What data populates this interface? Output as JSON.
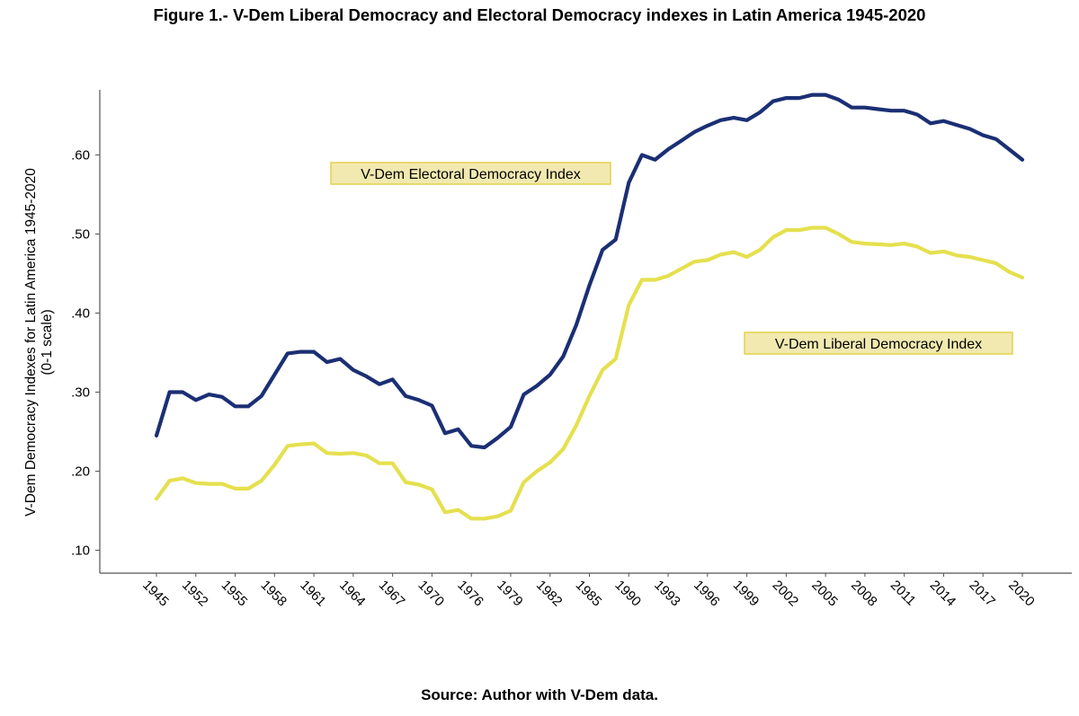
{
  "figure": {
    "title": "Figure 1.- V-Dem Liberal Democracy and Electoral Democracy indexes in Latin America 1945-2020",
    "source": "Source: Author with V-Dem data."
  },
  "chart_data": {
    "type": "line",
    "title": "Figure 1.- V-Dem Liberal Democracy and Electoral Democracy indexes in Latin America 1945-2020",
    "xlabel": "",
    "ylabel_lines": [
      "V-Dem Democracy Indexes for Latin America 1945-2020",
      "(0-1 scale)"
    ],
    "ylim": [
      0.09,
      0.7
    ],
    "y_ticks": [
      0.1,
      0.2,
      0.3,
      0.4,
      0.5,
      0.6
    ],
    "y_tick_labels": [
      ".10",
      ".20",
      ".30",
      ".40",
      ".50",
      ".60"
    ],
    "x_tick_labels": [
      "1945",
      "1952",
      "1955",
      "1958",
      "1961",
      "1964",
      "1967",
      "1970",
      "1976",
      "1979",
      "1982",
      "1985",
      "1990",
      "1993",
      "1996",
      "1999",
      "2002",
      "2005",
      "2008",
      "2011",
      "2014",
      "2017",
      "2020"
    ],
    "x_tick_positions": [
      0,
      3,
      6,
      9,
      12,
      15,
      18,
      21,
      24,
      27,
      30,
      33,
      36,
      39,
      42,
      45,
      48,
      51,
      54,
      57,
      60,
      63,
      66
    ],
    "grid": false,
    "legend": "inline labels",
    "series": [
      {
        "name": "V-Dem Electoral Democracy Index",
        "color": "#1b2f74",
        "label_color": "#f2e9b0",
        "label_border": "#e3d24a",
        "values": [
          0.245,
          0.3,
          0.3,
          0.29,
          0.297,
          0.294,
          0.282,
          0.282,
          0.295,
          0.322,
          0.349,
          0.351,
          0.351,
          0.338,
          0.342,
          0.328,
          0.32,
          0.31,
          0.316,
          0.295,
          0.29,
          0.283,
          0.248,
          0.253,
          0.232,
          0.23,
          0.242,
          0.256,
          0.297,
          0.308,
          0.322,
          0.345,
          0.385,
          0.435,
          0.48,
          0.493,
          0.565,
          0.6,
          0.594,
          0.607,
          0.618,
          0.629,
          0.637,
          0.644,
          0.647,
          0.644,
          0.654,
          0.668,
          0.672,
          0.672,
          0.676,
          0.676,
          0.67,
          0.66,
          0.66,
          0.658,
          0.656,
          0.656,
          0.651,
          0.64,
          0.643,
          0.638,
          0.633,
          0.625,
          0.62,
          0.607,
          0.594
        ]
      },
      {
        "name": "V-Dem Liberal Democracy Index",
        "color": "#e5e04e",
        "label_color": "#f2e9b0",
        "label_border": "#e3d24a",
        "values": [
          0.165,
          0.188,
          0.191,
          0.185,
          0.184,
          0.184,
          0.178,
          0.178,
          0.188,
          0.208,
          0.232,
          0.234,
          0.235,
          0.223,
          0.222,
          0.223,
          0.22,
          0.21,
          0.21,
          0.186,
          0.183,
          0.177,
          0.148,
          0.151,
          0.14,
          0.14,
          0.143,
          0.15,
          0.186,
          0.2,
          0.211,
          0.228,
          0.258,
          0.295,
          0.328,
          0.342,
          0.41,
          0.442,
          0.442,
          0.447,
          0.456,
          0.465,
          0.467,
          0.474,
          0.477,
          0.471,
          0.48,
          0.496,
          0.505,
          0.505,
          0.508,
          0.508,
          0.5,
          0.49,
          0.488,
          0.487,
          0.486,
          0.488,
          0.484,
          0.476,
          0.478,
          0.473,
          0.471,
          0.467,
          0.463,
          0.452,
          0.445
        ]
      }
    ]
  }
}
